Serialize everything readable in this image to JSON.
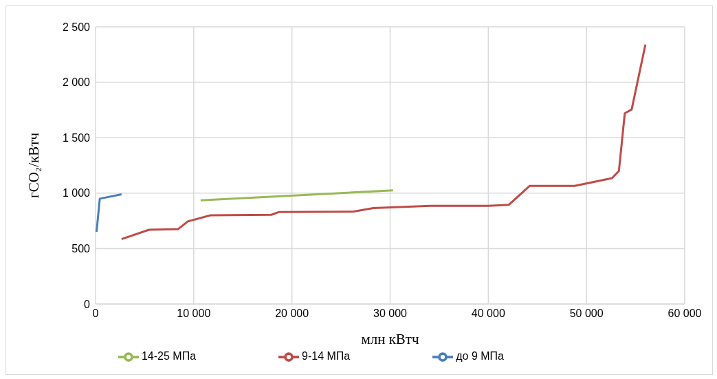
{
  "chart_data": {
    "type": "line",
    "xlabel": "млн кВтч",
    "ylabel": "гCO₂/кВтч",
    "xlim": [
      0,
      60000
    ],
    "xticks": [
      0,
      {
        "value": 10000,
        "label": "10 000"
      },
      {
        "value": 20000,
        "label": "20 000"
      },
      {
        "value": 30000,
        "label": "30 000"
      },
      {
        "value": 40000,
        "label": "40 000"
      },
      {
        "value": 50000,
        "label": "50 000"
      },
      {
        "value": 60000,
        "label": "60 000"
      }
    ],
    "ylim": [
      0,
      2500
    ],
    "yticks": [
      0,
      500,
      {
        "value": 1000,
        "label": "1 000"
      },
      {
        "value": 1500,
        "label": "1 500"
      },
      {
        "value": 2000,
        "label": "2 000"
      },
      {
        "value": 2500,
        "label": "2 500"
      }
    ],
    "grid": true,
    "legend": "bottom",
    "marker": "none",
    "line_style": "solid",
    "series": [
      {
        "name": "до 9 МПа",
        "color": "#4a7ebb",
        "x": [
          100,
          430,
          2650
        ],
        "values": [
          650,
          950,
          990
        ]
      },
      {
        "name": "9-14 МПа",
        "color": "#be4b48",
        "x": [
          2650,
          5450,
          8400,
          9400,
          11700,
          17900,
          18700,
          26200,
          28300,
          34100,
          40000,
          42100,
          44200,
          48800,
          52600,
          53300,
          53900,
          54600,
          56000
        ],
        "values": [
          585,
          670,
          675,
          745,
          800,
          805,
          830,
          833,
          865,
          885,
          885,
          895,
          1065,
          1065,
          1135,
          1200,
          1720,
          1755,
          2340
        ]
      },
      {
        "name": "14-25 МПа",
        "color": "#98b954",
        "x": [
          10700,
          30300
        ],
        "values": [
          935,
          1025
        ]
      }
    ]
  }
}
